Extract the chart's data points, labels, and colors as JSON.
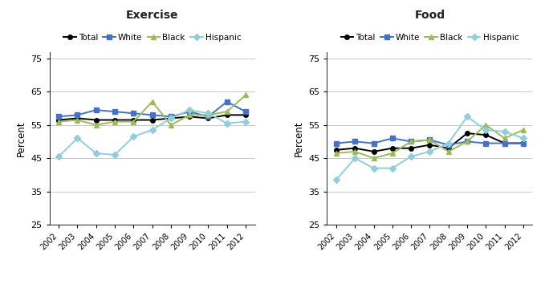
{
  "years": [
    2002,
    2003,
    2004,
    2005,
    2006,
    2007,
    2008,
    2009,
    2010,
    2011,
    2012
  ],
  "exercise": {
    "Total": [
      56.5,
      57.0,
      56.5,
      56.5,
      56.5,
      56.5,
      57.0,
      57.5,
      57.0,
      58.0,
      58.0
    ],
    "White": [
      57.5,
      58.0,
      59.5,
      59.0,
      58.5,
      58.0,
      57.5,
      59.0,
      57.5,
      62.0,
      59.0
    ],
    "Black": [
      56.0,
      56.5,
      55.0,
      56.0,
      56.0,
      62.0,
      55.0,
      58.0,
      58.0,
      59.0,
      64.0
    ],
    "Hispanic": [
      45.5,
      51.0,
      46.5,
      46.0,
      51.5,
      53.5,
      57.0,
      59.5,
      58.5,
      55.5,
      56.0
    ]
  },
  "food": {
    "Total": [
      47.5,
      48.0,
      47.0,
      48.0,
      48.0,
      49.0,
      48.0,
      52.5,
      52.0,
      49.5,
      49.5
    ],
    "White": [
      49.5,
      50.0,
      49.5,
      51.0,
      50.0,
      50.5,
      49.0,
      50.0,
      49.5,
      49.5,
      49.5
    ],
    "Black": [
      46.5,
      47.0,
      45.0,
      46.5,
      50.0,
      50.5,
      47.0,
      50.0,
      55.0,
      51.0,
      53.5
    ],
    "Hispanic": [
      38.5,
      45.0,
      42.0,
      42.0,
      45.5,
      47.0,
      49.5,
      57.5,
      53.5,
      53.0,
      51.0
    ]
  },
  "series_styles": {
    "Total": {
      "color": "#000000",
      "marker": "o",
      "linestyle": "-"
    },
    "White": {
      "color": "#4472C4",
      "marker": "s",
      "linestyle": "-"
    },
    "Black": {
      "color": "#9BBB59",
      "marker": "^",
      "linestyle": "-"
    },
    "Hispanic": {
      "color": "#92CDDC",
      "marker": "D",
      "linestyle": "-"
    }
  },
  "ylim": [
    25,
    77
  ],
  "yticks": [
    25,
    35,
    45,
    55,
    65,
    75
  ],
  "title_exercise": "Exercise",
  "title_food": "Food",
  "ylabel": "Percent",
  "legend_order": [
    "Total",
    "White",
    "Black",
    "Hispanic"
  ],
  "background_color": "#ffffff"
}
